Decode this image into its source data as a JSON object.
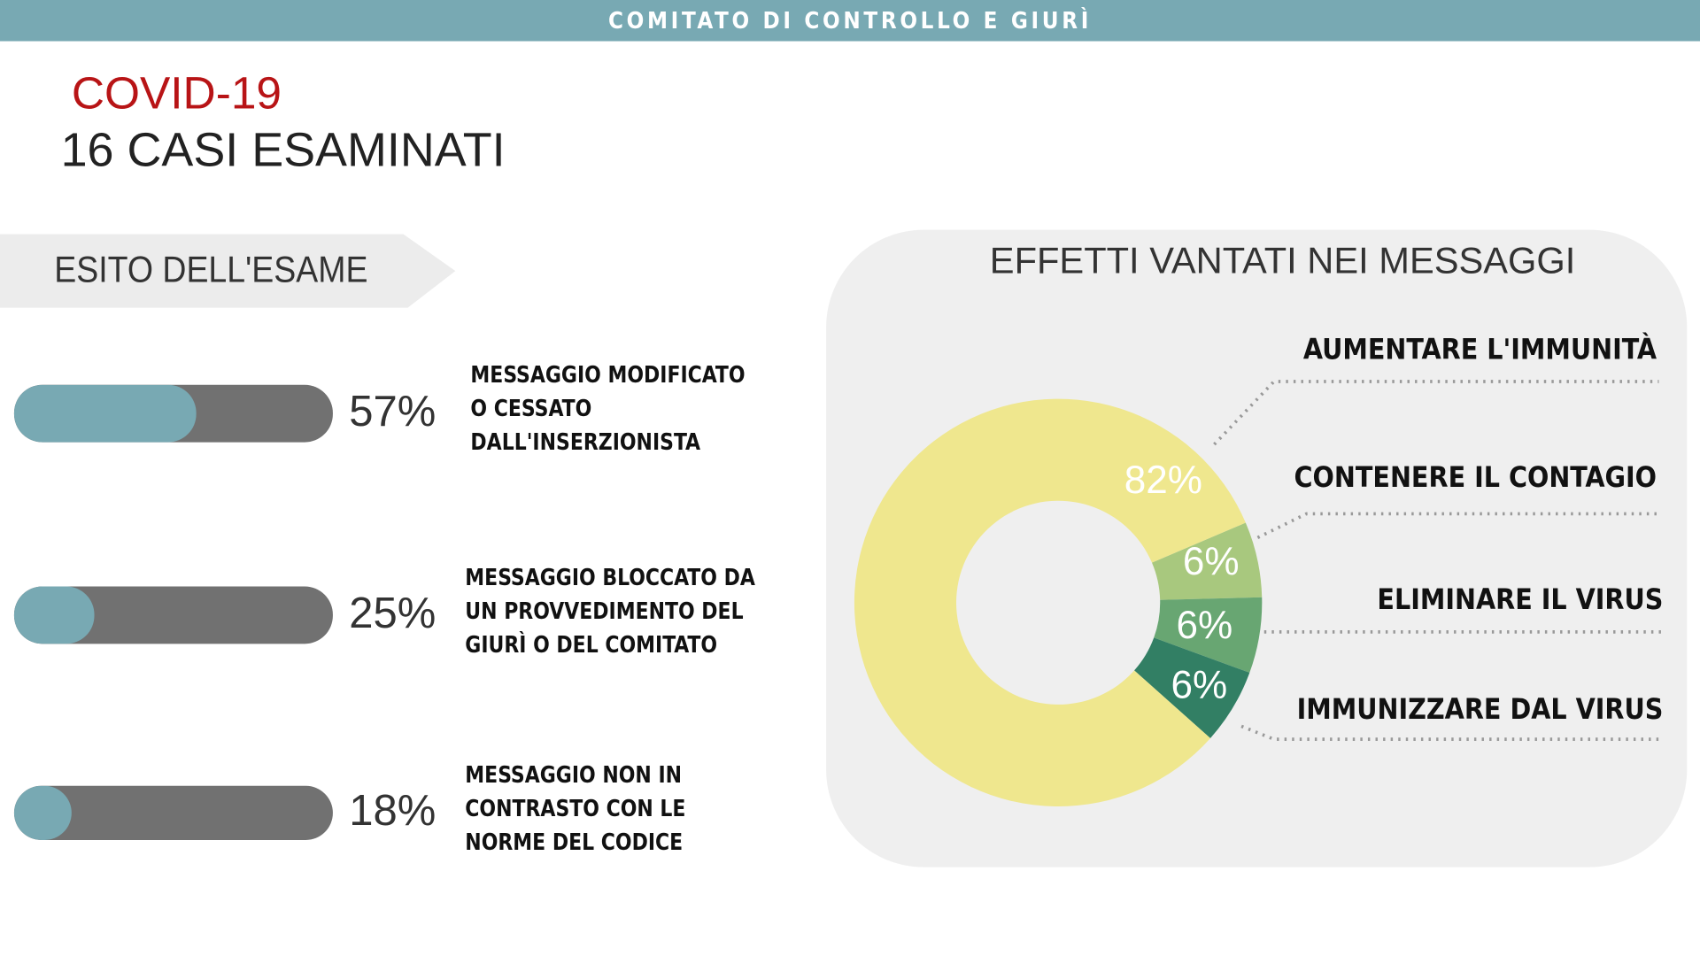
{
  "header": {
    "title": "COMITATO DI CONTROLLO E GIURÌ"
  },
  "heading": {
    "topic": "COVID-19",
    "subtitle": "16 CASI ESAMINATI"
  },
  "outcomes": {
    "title": "ESITO DELL'ESAME",
    "items": [
      {
        "percent": 57,
        "label": "57%",
        "lines": [
          "MESSAGGIO MODIFICATO",
          "O CESSATO",
          "DALL'INSERZIONISTA"
        ]
      },
      {
        "percent": 25,
        "label": "25%",
        "lines": [
          "MESSAGGIO BLOCCATO DA",
          "UN PROVVEDIMENTO DEL",
          "GIURÌ O DEL COMITATO"
        ]
      },
      {
        "percent": 18,
        "label": "18%",
        "lines": [
          "MESSAGGIO NON IN",
          "CONTRASTO CON LE",
          "NORME DEL CODICE"
        ]
      }
    ]
  },
  "chart_data": {
    "type": "pie",
    "title": "EFFETTI VANTATI NEI MESSAGGI",
    "categories": [
      "AUMENTARE L'IMMUNITÀ",
      "CONTENERE IL CONTAGIO",
      "ELIMINARE IL VIRUS",
      "IMMUNIZZARE DAL VIRUS"
    ],
    "values": [
      82,
      6,
      6,
      6
    ],
    "labels": [
      "82%",
      "6%",
      "6%",
      "6%"
    ],
    "colors": [
      "#efe78e",
      "#a8c87e",
      "#68a672",
      "#327f64"
    ],
    "donut": true
  },
  "colors": {
    "accent": "#78a9b3",
    "covid": "#b81416",
    "bar_bg": "#717171"
  }
}
